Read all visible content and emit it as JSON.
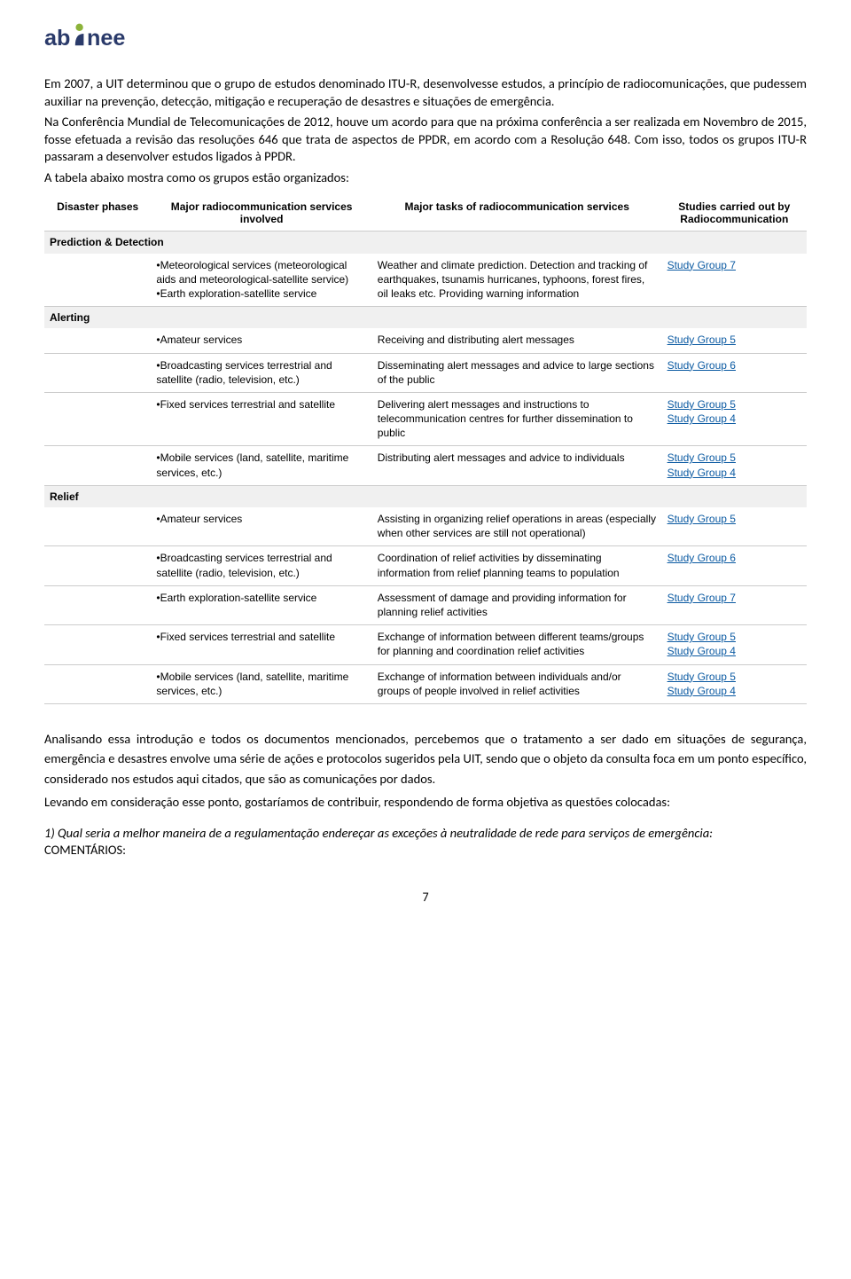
{
  "logo": {
    "text": "abinee",
    "color_accent": "#8cb33a",
    "color_main": "#2a3a6a"
  },
  "para1": "Em 2007, a UIT determinou que o grupo de estudos denominado ITU-R, desenvolvesse estudos, a princípio de radiocomunicações, que pudessem auxiliar na prevenção, detecção, mitigação e recuperação de desastres e situações de emergência.",
  "para2": "Na Conferência Mundial de Telecomunicações de 2012, houve um acordo para que na próxima conferência a ser realizada em Novembro de 2015, fosse efetuada a revisão das resoluções 646 que trata de aspectos de PPDR, em acordo com a Resolução 648. Com isso, todos os grupos ITU-R passaram a desenvolver estudos ligados à PPDR.",
  "para3": "A tabela abaixo mostra como os grupos estão organizados:",
  "table": {
    "headers": {
      "c1": "Disaster phases",
      "c2": "Major radiocommunication services involved",
      "c3": "Major tasks of radiocommunication services",
      "c4": "Studies carried out by Radiocommunication"
    },
    "sections": [
      {
        "title": "Prediction & Detection",
        "rows": [
          {
            "c2": "•Meteorological services (meteorological aids and meteorological-satellite service)\n•Earth exploration-satellite  service",
            "c3": "Weather and climate prediction. Detection and tracking of earthquakes, tsunamis hurricanes, typhoons, forest fires, oil leaks etc. Providing warning information",
            "c4": [
              "Study Group 7"
            ]
          }
        ]
      },
      {
        "title": "Alerting",
        "rows": [
          {
            "c2": "•Amateur services",
            "c3": "Receiving and distributing  alert messages",
            "c4": [
              "Study Group 5"
            ]
          },
          {
            "c2": "•Broadcasting services terrestrial and satellite (radio, television, etc.)",
            "c3": "Disseminating alert messages and advice to large sections of the public",
            "c4": [
              "Study Group 6"
            ]
          },
          {
            "c2": "•Fixed services terrestrial and satellite",
            "c3": "Delivering alert messages and instructions to telecommunication centres for further dissemination to public",
            "c4": [
              "Study Group 5",
              "Study Group 4"
            ]
          },
          {
            "c2": "•Mobile services (land, satellite, maritime services, etc.)",
            "c3": "Distributing alert messages and advice to individuals",
            "c4": [
              "Study Group 5",
              "Study Group 4"
            ]
          }
        ]
      },
      {
        "title": "Relief",
        "rows": [
          {
            "c2": "•Amateur services",
            "c3": "Assisting in organizing relief operations in areas (especially when other services are still not operational)",
            "c4": [
              "Study Group 5"
            ]
          },
          {
            "c2": "•Broadcasting services terrestrial and satellite (radio, television, etc.)",
            "c3": "Coordination of relief activities by disseminating information from relief planning teams to population",
            "c4": [
              "Study Group 6"
            ]
          },
          {
            "c2": "•Earth exploration-satellite  service",
            "c3": "Assessment of damage and providing information for planning relief activities",
            "c4": [
              "Study Group 7"
            ]
          },
          {
            "c2": "•Fixed services terrestrial and satellite",
            "c3": "Exchange of information between different teams/groups for planning and coordination relief activities",
            "c4": [
              "Study Group 5",
              "Study Group 4"
            ]
          },
          {
            "c2": "•Mobile services (land, satellite, maritime services, etc.)",
            "c3": "Exchange of information between individuals and/or groups of people involved in relief activities",
            "c4": [
              "Study Group 5",
              "Study Group 4"
            ]
          }
        ]
      }
    ]
  },
  "para4": "Analisando essa introdução e todos os documentos mencionados, percebemos que o tratamento a ser dado em situações de segurança, emergência e desastres envolve uma série de ações e protocolos sugeridos pela UIT, sendo que o objeto da consulta foca em um ponto específico, considerado nos estudos aqui citados, que são as comunicações por dados.",
  "para5": "Levando em consideração esse ponto, gostaríamos de contribuir, respondendo de forma objetiva as questões colocadas:",
  "question1": "1) Qual seria a melhor maneira de a regulamentação endereçar as exceções à neutralidade de rede para serviços de emergência:",
  "comentarios": "COMENTÁRIOS:",
  "page_number": "7"
}
